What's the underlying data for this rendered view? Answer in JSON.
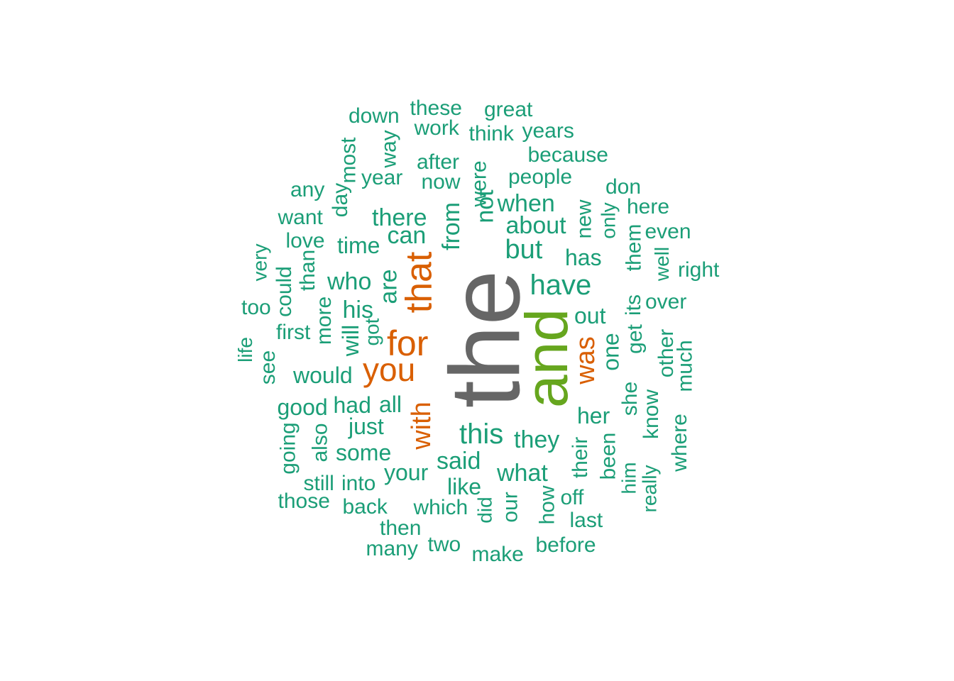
{
  "palette": {
    "common": "#1b9e77",
    "orange": "#d95f02",
    "green": "#66a61e",
    "gray": "#666666"
  },
  "words": [
    {
      "text": "the",
      "color": "#666666"
    },
    {
      "text": "and",
      "color": "#66a61e"
    },
    {
      "text": "that",
      "color": "#d95f02"
    },
    {
      "text": "for",
      "color": "#d95f02"
    },
    {
      "text": "you",
      "color": "#d95f02"
    },
    {
      "text": "with",
      "color": "#d95f02"
    },
    {
      "text": "was",
      "color": "#d95f02"
    },
    {
      "text": "have",
      "color": "#1b9e77"
    },
    {
      "text": "this",
      "color": "#1b9e77"
    },
    {
      "text": "but",
      "color": "#1b9e77"
    },
    {
      "text": "they",
      "color": "#1b9e77"
    },
    {
      "text": "what",
      "color": "#1b9e77"
    },
    {
      "text": "said",
      "color": "#1b9e77"
    },
    {
      "text": "are",
      "color": "#1b9e77"
    },
    {
      "text": "not",
      "color": "#1b9e77"
    },
    {
      "text": "from",
      "color": "#1b9e77"
    },
    {
      "text": "his",
      "color": "#1b9e77"
    },
    {
      "text": "out",
      "color": "#1b9e77"
    },
    {
      "text": "one",
      "color": "#1b9e77"
    },
    {
      "text": "her",
      "color": "#1b9e77"
    },
    {
      "text": "has",
      "color": "#1b9e77"
    },
    {
      "text": "who",
      "color": "#1b9e77"
    },
    {
      "text": "can",
      "color": "#1b9e77"
    },
    {
      "text": "there",
      "color": "#1b9e77"
    },
    {
      "text": "about",
      "color": "#1b9e77"
    },
    {
      "text": "when",
      "color": "#1b9e77"
    },
    {
      "text": "all",
      "color": "#1b9e77"
    },
    {
      "text": "just",
      "color": "#1b9e77"
    },
    {
      "text": "your",
      "color": "#1b9e77"
    },
    {
      "text": "some",
      "color": "#1b9e77"
    },
    {
      "text": "would",
      "color": "#1b9e77"
    },
    {
      "text": "time",
      "color": "#1b9e77"
    },
    {
      "text": "like",
      "color": "#1b9e77"
    },
    {
      "text": "will",
      "color": "#1b9e77"
    },
    {
      "text": "had",
      "color": "#1b9e77"
    },
    {
      "text": "good",
      "color": "#1b9e77"
    },
    {
      "text": "first",
      "color": "#1b9e77"
    },
    {
      "text": "more",
      "color": "#1b9e77"
    },
    {
      "text": "got",
      "color": "#1b9e77"
    },
    {
      "text": "people",
      "color": "#1b9e77"
    },
    {
      "text": "after",
      "color": "#1b9e77"
    },
    {
      "text": "now",
      "color": "#1b9e77"
    },
    {
      "text": "were",
      "color": "#1b9e77"
    },
    {
      "text": "year",
      "color": "#1b9e77"
    },
    {
      "text": "because",
      "color": "#1b9e77"
    },
    {
      "text": "new",
      "color": "#1b9e77"
    },
    {
      "text": "only",
      "color": "#1b9e77"
    },
    {
      "text": "don",
      "color": "#1b9e77"
    },
    {
      "text": "here",
      "color": "#1b9e77"
    },
    {
      "text": "them",
      "color": "#1b9e77"
    },
    {
      "text": "even",
      "color": "#1b9e77"
    },
    {
      "text": "well",
      "color": "#1b9e77"
    },
    {
      "text": "right",
      "color": "#1b9e77"
    },
    {
      "text": "its",
      "color": "#1b9e77"
    },
    {
      "text": "get",
      "color": "#1b9e77"
    },
    {
      "text": "over",
      "color": "#1b9e77"
    },
    {
      "text": "other",
      "color": "#1b9e77"
    },
    {
      "text": "much",
      "color": "#1b9e77"
    },
    {
      "text": "she",
      "color": "#1b9e77"
    },
    {
      "text": "know",
      "color": "#1b9e77"
    },
    {
      "text": "where",
      "color": "#1b9e77"
    },
    {
      "text": "their",
      "color": "#1b9e77"
    },
    {
      "text": "been",
      "color": "#1b9e77"
    },
    {
      "text": "him",
      "color": "#1b9e77"
    },
    {
      "text": "really",
      "color": "#1b9e77"
    },
    {
      "text": "how",
      "color": "#1b9e77"
    },
    {
      "text": "off",
      "color": "#1b9e77"
    },
    {
      "text": "last",
      "color": "#1b9e77"
    },
    {
      "text": "before",
      "color": "#1b9e77"
    },
    {
      "text": "make",
      "color": "#1b9e77"
    },
    {
      "text": "two",
      "color": "#1b9e77"
    },
    {
      "text": "many",
      "color": "#1b9e77"
    },
    {
      "text": "then",
      "color": "#1b9e77"
    },
    {
      "text": "which",
      "color": "#1b9e77"
    },
    {
      "text": "did",
      "color": "#1b9e77"
    },
    {
      "text": "our",
      "color": "#1b9e77"
    },
    {
      "text": "back",
      "color": "#1b9e77"
    },
    {
      "text": "into",
      "color": "#1b9e77"
    },
    {
      "text": "those",
      "color": "#1b9e77"
    },
    {
      "text": "still",
      "color": "#1b9e77"
    },
    {
      "text": "going",
      "color": "#1b9e77"
    },
    {
      "text": "also",
      "color": "#1b9e77"
    },
    {
      "text": "see",
      "color": "#1b9e77"
    },
    {
      "text": "life",
      "color": "#1b9e77"
    },
    {
      "text": "too",
      "color": "#1b9e77"
    },
    {
      "text": "could",
      "color": "#1b9e77"
    },
    {
      "text": "very",
      "color": "#1b9e77"
    },
    {
      "text": "than",
      "color": "#1b9e77"
    },
    {
      "text": "love",
      "color": "#1b9e77"
    },
    {
      "text": "want",
      "color": "#1b9e77"
    },
    {
      "text": "any",
      "color": "#1b9e77"
    },
    {
      "text": "day",
      "color": "#1b9e77"
    },
    {
      "text": "most",
      "color": "#1b9e77"
    },
    {
      "text": "way",
      "color": "#1b9e77"
    },
    {
      "text": "down",
      "color": "#1b9e77"
    },
    {
      "text": "these",
      "color": "#1b9e77"
    },
    {
      "text": "work",
      "color": "#1b9e77"
    },
    {
      "text": "great",
      "color": "#1b9e77"
    },
    {
      "text": "think",
      "color": "#1b9e77"
    },
    {
      "text": "years",
      "color": "#1b9e77"
    }
  ]
}
